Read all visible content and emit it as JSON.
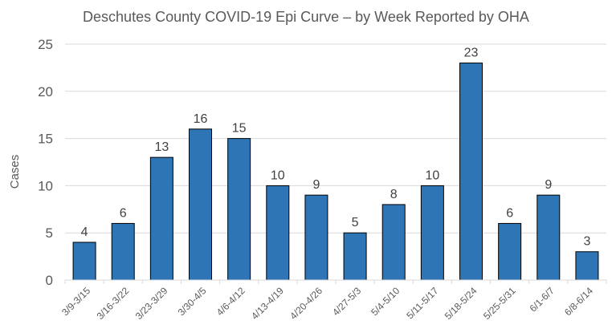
{
  "chart_data": {
    "type": "bar",
    "title": "Deschutes County COVID-19 Epi Curve – by Week Reported by OHA",
    "xlabel": "",
    "ylabel": "Cases",
    "ylim": [
      0,
      25
    ],
    "yticks": [
      0,
      5,
      10,
      15,
      20,
      25
    ],
    "grid": true,
    "categories": [
      "3/9-3/15",
      "3/16-3/22",
      "3/23-3/29",
      "3/30-4/5",
      "4/6-4/12",
      "4/13-4/19",
      "4/20-4/26",
      "4/27-5/3",
      "5/4-5/10",
      "5/11-5/17",
      "5/18-5/24",
      "5/25-5/31",
      "6/1-6/7",
      "6/8-6/14"
    ],
    "values": [
      4,
      6,
      13,
      16,
      15,
      10,
      9,
      5,
      8,
      10,
      23,
      6,
      9,
      3
    ],
    "bar_color": "#2E75B6",
    "bar_edge_color": "#000000"
  }
}
